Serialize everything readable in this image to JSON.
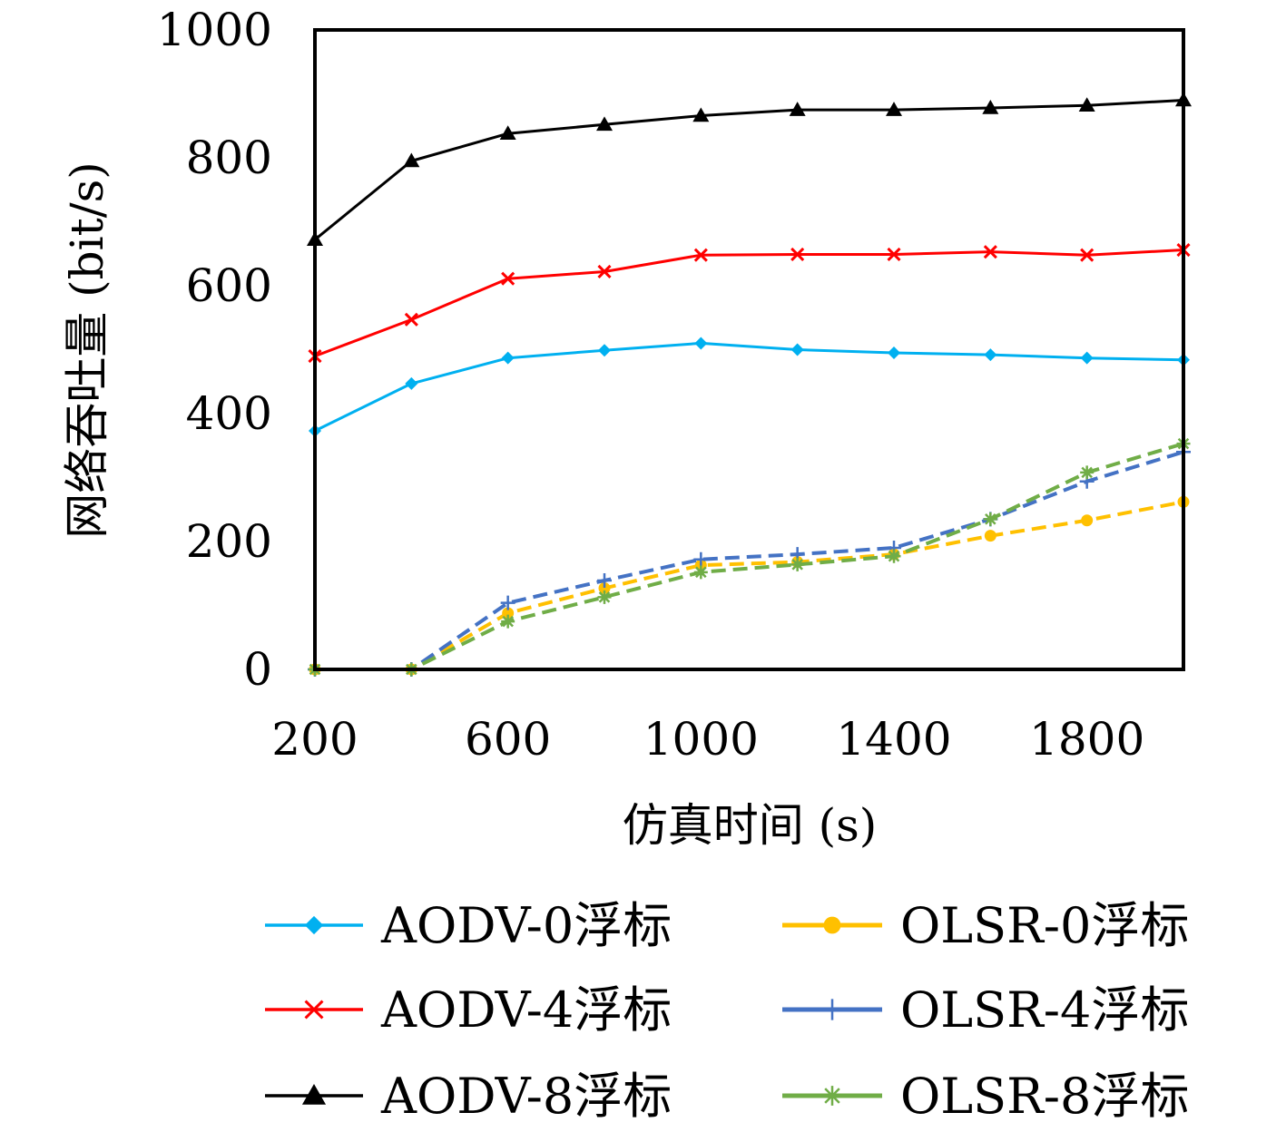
{
  "chart_data": {
    "type": "line",
    "title": "",
    "xlabel": "仿真时间 (s)",
    "ylabel": "网络吞吐量 (bit/s)",
    "xlim": [
      200,
      2000
    ],
    "ylim": [
      0,
      1000
    ],
    "xticks": [
      200,
      600,
      1000,
      1400,
      1800
    ],
    "yticks": [
      0,
      200,
      400,
      600,
      800,
      1000
    ],
    "grid": false,
    "legend_position": "bottom",
    "x": [
      200,
      400,
      600,
      800,
      1000,
      1200,
      1400,
      1600,
      1800,
      2000
    ],
    "series": [
      {
        "name": "AODV-0浮标",
        "color": "#00B0F0",
        "marker": "diamond",
        "dashed": false,
        "values": [
          373,
          447,
          487,
          499,
          510,
          500,
          495,
          492,
          487,
          484
        ]
      },
      {
        "name": "AODV-4浮标",
        "color": "#FF0000",
        "marker": "x",
        "dashed": false,
        "values": [
          490,
          547,
          611,
          622,
          648,
          649,
          649,
          653,
          648,
          656
        ]
      },
      {
        "name": "AODV-8浮标",
        "color": "#000000",
        "marker": "triangle",
        "dashed": false,
        "values": [
          672,
          795,
          838,
          852,
          866,
          875,
          875,
          878,
          882,
          890
        ]
      },
      {
        "name": "OLSR-0浮标",
        "color": "#FFC000",
        "marker": "circle",
        "dashed": true,
        "values": [
          0,
          0,
          88,
          127,
          163,
          168,
          180,
          209,
          233,
          262
        ]
      },
      {
        "name": "OLSR-4浮标",
        "color": "#4472C4",
        "marker": "plus",
        "dashed": true,
        "values": [
          0,
          0,
          104,
          139,
          172,
          180,
          190,
          235,
          294,
          340
        ]
      },
      {
        "name": "OLSR-8浮标",
        "color": "#70AD47",
        "marker": "asterisk",
        "dashed": true,
        "values": [
          0,
          0,
          75,
          113,
          152,
          164,
          177,
          235,
          308,
          353
        ]
      }
    ]
  }
}
